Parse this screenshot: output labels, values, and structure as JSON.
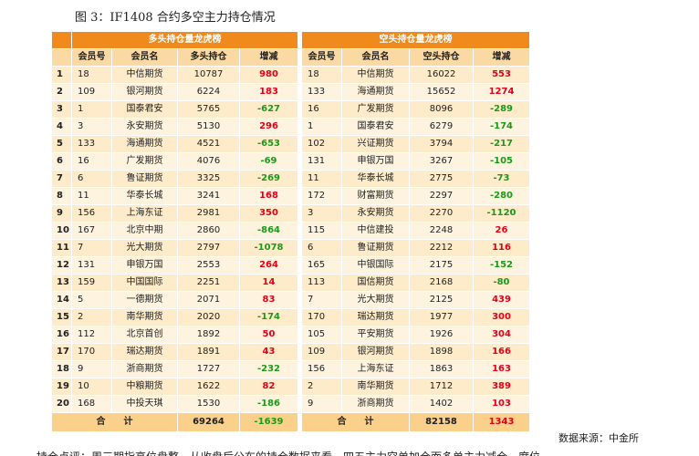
{
  "caption": "图 3：IF1408 合约多空主力持仓情况",
  "long": {
    "title": "多头持仓量龙虎榜",
    "headers": [
      "会员号",
      "会员名",
      "多头持仓",
      "增减"
    ],
    "rows": [
      [
        "1",
        "18",
        "中信期货",
        "10787",
        "980"
      ],
      [
        "2",
        "109",
        "银河期货",
        "6224",
        "183"
      ],
      [
        "3",
        "1",
        "国泰君安",
        "5765",
        "-627"
      ],
      [
        "4",
        "3",
        "永安期货",
        "5130",
        "296"
      ],
      [
        "5",
        "133",
        "海通期货",
        "4521",
        "-653"
      ],
      [
        "6",
        "16",
        "广发期货",
        "4076",
        "-69"
      ],
      [
        "7",
        "6",
        "鲁证期货",
        "3325",
        "-269"
      ],
      [
        "8",
        "11",
        "华泰长城",
        "3241",
        "168"
      ],
      [
        "9",
        "156",
        "上海东证",
        "2981",
        "350"
      ],
      [
        "10",
        "167",
        "北京中期",
        "2860",
        "-864"
      ],
      [
        "11",
        "7",
        "光大期货",
        "2797",
        "-1078"
      ],
      [
        "12",
        "131",
        "申银万国",
        "2553",
        "264"
      ],
      [
        "13",
        "159",
        "中国国际",
        "2251",
        "14"
      ],
      [
        "14",
        "5",
        "一德期货",
        "2071",
        "83"
      ],
      [
        "15",
        "2",
        "南华期货",
        "2020",
        "-174"
      ],
      [
        "16",
        "112",
        "北京首创",
        "1892",
        "50"
      ],
      [
        "17",
        "170",
        "瑞达期货",
        "1891",
        "43"
      ],
      [
        "18",
        "9",
        "浙商期货",
        "1727",
        "-232"
      ],
      [
        "19",
        "10",
        "中粮期货",
        "1622",
        "82"
      ],
      [
        "20",
        "168",
        "中投天琪",
        "1530",
        "-186"
      ]
    ],
    "total_label": "合　　计",
    "total_value": "69264",
    "total_change": "-1639"
  },
  "short": {
    "title": "空头持仓量龙虎榜",
    "headers": [
      "会员号",
      "会员名",
      "空头持仓",
      "增减"
    ],
    "rows": [
      [
        "18",
        "中信期货",
        "16022",
        "553"
      ],
      [
        "133",
        "海通期货",
        "15652",
        "1274"
      ],
      [
        "16",
        "广发期货",
        "8096",
        "-289"
      ],
      [
        "1",
        "国泰君安",
        "6279",
        "-174"
      ],
      [
        "102",
        "兴证期货",
        "3794",
        "-217"
      ],
      [
        "131",
        "申银万国",
        "3267",
        "-105"
      ],
      [
        "11",
        "华泰长城",
        "2775",
        "-73"
      ],
      [
        "172",
        "财富期货",
        "2297",
        "-280"
      ],
      [
        "3",
        "永安期货",
        "2270",
        "-1120"
      ],
      [
        "115",
        "中信建投",
        "2248",
        "26"
      ],
      [
        "6",
        "鲁证期货",
        "2212",
        "116"
      ],
      [
        "165",
        "中银国际",
        "2175",
        "-152"
      ],
      [
        "113",
        "国信期货",
        "2168",
        "-80"
      ],
      [
        "7",
        "光大期货",
        "2125",
        "439"
      ],
      [
        "170",
        "瑞达期货",
        "1977",
        "300"
      ],
      [
        "105",
        "平安期货",
        "1926",
        "304"
      ],
      [
        "109",
        "银河期货",
        "1898",
        "166"
      ],
      [
        "156",
        "上海东证",
        "1863",
        "163"
      ],
      [
        "2",
        "南华期货",
        "1712",
        "389"
      ],
      [
        "9",
        "浙商期货",
        "1402",
        "103"
      ]
    ],
    "total_label": "合　　计",
    "total_value": "82158",
    "total_change": "1343"
  },
  "source": "数据来源：中金所",
  "body_text": "持仓点评：周三期指高位盘整，从收盘后公布的持仓数据来看，四五主力空单加仓而多单主力减仓，席位"
}
